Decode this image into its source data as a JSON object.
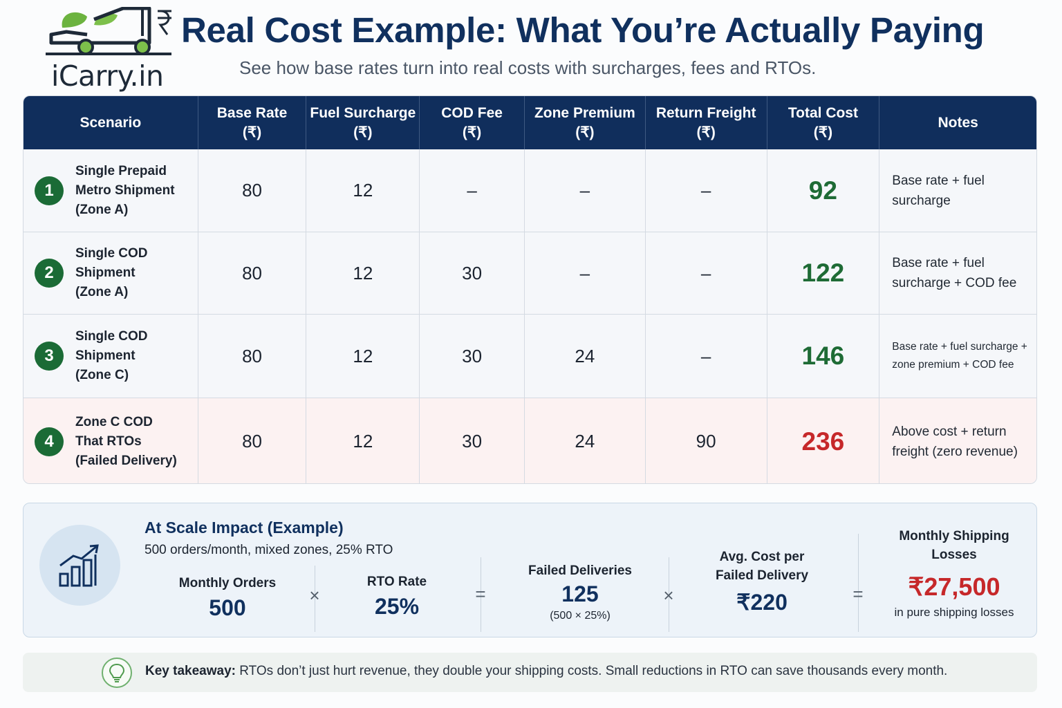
{
  "brand": {
    "logo_text": "iCarry.in"
  },
  "header": {
    "title": "Real Cost Example: What You’re Actually Paying",
    "subtitle": "See how base rates turn into real costs with surcharges, fees and RTOs."
  },
  "table": {
    "columns": [
      "Scenario",
      "Base Rate\n(₹)",
      "Fuel Surcharge\n(₹)",
      "COD Fee\n(₹)",
      "Zone Premium\n(₹)",
      "Return Freight\n(₹)",
      "Total Cost\n(₹)",
      "Notes"
    ],
    "rows": [
      {
        "num": "1",
        "scenario": "Single Prepaid\nMetro Shipment\n(Zone A)",
        "base_rate": "80",
        "fuel": "12",
        "cod": "–",
        "zone": "–",
        "return": "–",
        "total": "92",
        "notes": "Base rate + fuel surcharge"
      },
      {
        "num": "2",
        "scenario": "Single COD Shipment\n(Zone A)",
        "base_rate": "80",
        "fuel": "12",
        "cod": "30",
        "zone": "–",
        "return": "–",
        "total": "122",
        "notes": "Base rate + fuel surcharge + COD fee"
      },
      {
        "num": "3",
        "scenario": "Single COD Shipment\n(Zone C)",
        "base_rate": "80",
        "fuel": "12",
        "cod": "30",
        "zone": "24",
        "return": "–",
        "total": "146",
        "notes": "Base rate + fuel surcharge + zone premium + COD fee"
      },
      {
        "num": "4",
        "scenario": "Zone C COD\nThat RTOs\n(Failed Delivery)",
        "base_rate": "80",
        "fuel": "12",
        "cod": "30",
        "zone": "24",
        "return": "90",
        "total": "236",
        "notes": "Above cost + return freight (zero revenue)"
      }
    ],
    "colors": {
      "header_bg": "#102e5c",
      "total_green": "#1e6b35",
      "total_red": "#c6282a",
      "rto_row_bg": "#fcf2f2"
    }
  },
  "scale": {
    "title": "At Scale Impact (Example)",
    "subtitle": "500 orders/month, mixed zones, 25% RTO",
    "icon": "bar-chart-growth-icon",
    "monthly_orders": {
      "label": "Monthly Orders",
      "value": "500"
    },
    "op_multiply": "×",
    "rto_rate": {
      "label": "RTO Rate",
      "value": "25%"
    },
    "op_equals": "=",
    "failed": {
      "label": "Failed Deliveries",
      "value": "125",
      "note": "(500 × 25%)"
    },
    "avg_cost": {
      "label": "Avg. Cost per\nFailed Delivery",
      "value": "₹220"
    },
    "losses": {
      "label": "Monthly Shipping\nLosses",
      "value": "₹27,500",
      "note": "in pure shipping losses"
    }
  },
  "takeaway": {
    "icon": "lightbulb-icon",
    "label": "Key takeaway:",
    "text": " RTOs don’t just hurt revenue, they double your shipping costs. Small reductions in RTO can save thousands every month."
  }
}
